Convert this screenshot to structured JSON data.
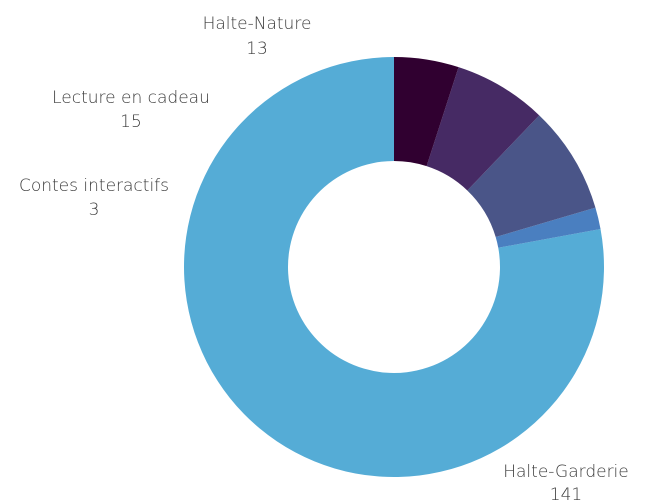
{
  "chart_data": {
    "type": "pie",
    "variant": "donut",
    "slices": [
      {
        "label": "Halte-Garderie",
        "value": 141,
        "value_label": "141",
        "color": "#55acd6"
      },
      {
        "label": "Contes interactifs",
        "value": 3,
        "value_label": "3",
        "color": "#4a7fc0"
      },
      {
        "label": "Lecture en cadeau",
        "value": 15,
        "value_label": "15",
        "color": "#4a5588"
      },
      {
        "label": "Halte-Nature",
        "value": 13,
        "value_label": "13",
        "color": "#462a64"
      },
      {
        "label": "",
        "value": 9,
        "value_label": "",
        "color": "#300030"
      }
    ],
    "start": "top",
    "direction": "counterclockwise",
    "legend": "none"
  }
}
